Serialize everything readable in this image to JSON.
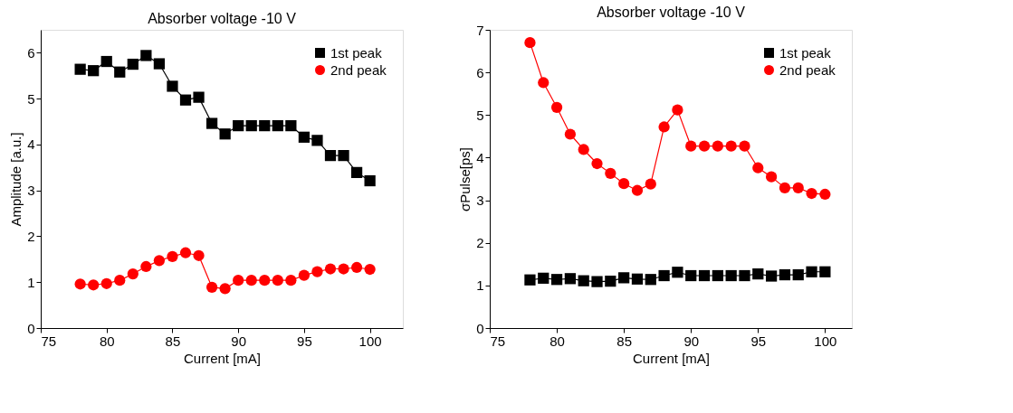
{
  "chart_data": [
    {
      "type": "line",
      "title": "Absorber voltage -10 V",
      "xlabel": "Current [mA]",
      "ylabel": "Amplitude [a.u.]",
      "x": [
        78,
        79,
        80,
        81,
        82,
        83,
        84,
        85,
        86,
        87,
        88,
        89,
        90,
        91,
        92,
        93,
        94,
        95,
        96,
        97,
        98,
        99,
        100
      ],
      "series": [
        {
          "name": "1st peak",
          "color": "#000000",
          "marker": "square",
          "values": [
            5.64,
            5.61,
            5.81,
            5.58,
            5.75,
            5.94,
            5.76,
            5.27,
            4.97,
            5.03,
            4.46,
            4.23,
            4.41,
            4.41,
            4.41,
            4.41,
            4.41,
            4.16,
            4.09,
            3.76,
            3.76,
            3.39,
            3.21
          ]
        },
        {
          "name": "2nd peak",
          "color": "#ff0000",
          "marker": "circle",
          "values": [
            0.96,
            0.94,
            0.97,
            1.04,
            1.18,
            1.34,
            1.47,
            1.56,
            1.64,
            1.58,
            0.89,
            0.86,
            1.04,
            1.04,
            1.04,
            1.04,
            1.04,
            1.15,
            1.23,
            1.29,
            1.29,
            1.32,
            1.28
          ]
        }
      ],
      "xlim": [
        75,
        102.5
      ],
      "ylim": [
        0,
        6.5
      ],
      "xticks": [
        75,
        80,
        85,
        90,
        95,
        100
      ],
      "yticks": [
        0,
        1,
        2,
        3,
        4,
        5,
        6
      ],
      "grid": false,
      "legend": "top right",
      "line_style": "solid"
    },
    {
      "type": "line",
      "title": "Absorber voltage -10 V",
      "xlabel": "Current [mA]",
      "ylabel": "σPulse[ps]",
      "x": [
        78,
        79,
        80,
        81,
        82,
        83,
        84,
        85,
        86,
        87,
        88,
        89,
        90,
        91,
        92,
        93,
        94,
        95,
        96,
        97,
        98,
        99,
        100
      ],
      "series": [
        {
          "name": "1st peak",
          "color": "#000000",
          "marker": "square",
          "values": [
            1.13,
            1.17,
            1.14,
            1.16,
            1.11,
            1.09,
            1.1,
            1.18,
            1.15,
            1.14,
            1.23,
            1.31,
            1.23,
            1.23,
            1.23,
            1.23,
            1.23,
            1.27,
            1.22,
            1.25,
            1.25,
            1.32,
            1.32
          ]
        },
        {
          "name": "2nd peak",
          "color": "#ff0000",
          "marker": "circle",
          "values": [
            6.7,
            5.76,
            5.18,
            4.55,
            4.19,
            3.86,
            3.63,
            3.39,
            3.23,
            3.38,
            4.72,
            5.12,
            4.27,
            4.27,
            4.27,
            4.27,
            4.27,
            3.76,
            3.55,
            3.29,
            3.29,
            3.16,
            3.14
          ]
        }
      ],
      "xlim": [
        75,
        102
      ],
      "ylim": [
        0,
        7
      ],
      "xticks": [
        75,
        80,
        85,
        90,
        95,
        100
      ],
      "yticks": [
        0,
        1,
        2,
        3,
        4,
        5,
        6,
        7
      ],
      "grid": false,
      "legend": "top right",
      "line_style": "solid"
    }
  ]
}
